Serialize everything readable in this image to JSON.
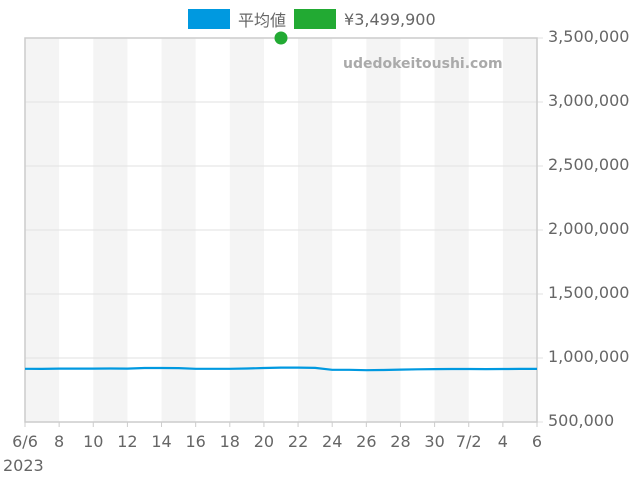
{
  "chart_data": {
    "type": "line",
    "title": "",
    "watermark": "udedokeitoushi.com",
    "legend": [
      {
        "label": "平均値",
        "color": "#0099e0"
      },
      {
        "label": "¥3,499,900",
        "color": "#22aa33"
      }
    ],
    "xlabel": "",
    "ylabel": "",
    "x_tick_labels": [
      "6/6",
      "8",
      "10",
      "12",
      "14",
      "16",
      "18",
      "20",
      "22",
      "24",
      "26",
      "28",
      "30",
      "7/2",
      "4",
      "6"
    ],
    "x_year_label": "2023",
    "y_tick_labels": [
      "3,500,000",
      "3,000,000",
      "2,500,000",
      "2,000,000",
      "1,500,000",
      "1,000,000",
      "500,000"
    ],
    "ylim": [
      500000,
      3500000
    ],
    "grid": true,
    "legend_position": "top",
    "series": [
      {
        "name": "平均値",
        "color": "#0099e0",
        "x": [
          "6/6",
          "6/7",
          "6/8",
          "6/9",
          "6/10",
          "6/11",
          "6/12",
          "6/13",
          "6/14",
          "6/15",
          "6/16",
          "6/17",
          "6/18",
          "6/19",
          "6/20",
          "6/21",
          "6/22",
          "6/23",
          "6/24",
          "6/25",
          "6/26",
          "6/27",
          "6/28",
          "6/29",
          "6/30",
          "7/1",
          "7/2",
          "7/3",
          "7/4",
          "7/5",
          "7/6"
        ],
        "values": [
          916000,
          915000,
          917000,
          917000,
          917000,
          918000,
          917000,
          922000,
          922000,
          921000,
          916000,
          916000,
          916000,
          918000,
          922000,
          925000,
          925000,
          923000,
          908000,
          908000,
          905000,
          906000,
          909000,
          912000,
          913000,
          914000,
          914000,
          913000,
          914000,
          915000,
          915000
        ]
      },
      {
        "name": "¥3,499,900",
        "color": "#22aa33",
        "type": "scatter",
        "x": [
          "6/21"
        ],
        "values": [
          3499900
        ]
      }
    ]
  }
}
